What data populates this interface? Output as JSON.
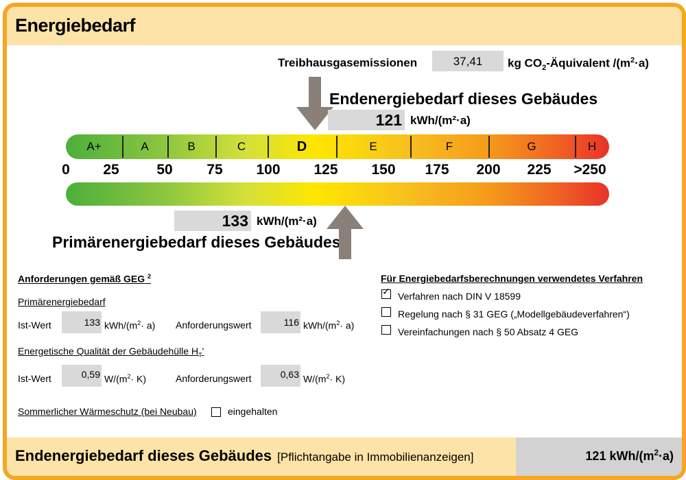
{
  "header": {
    "title": "Energiebedarf"
  },
  "emissions": {
    "label": "Treibhausgasemissionen",
    "value": "37,41",
    "unit_pre": "kg CO",
    "unit_sub": "2",
    "unit_mid": "-Äquivalent /(m",
    "unit_sup": "2",
    "unit_post": "·a)"
  },
  "end_energy": {
    "title": "Endenergiebedarf dieses Gebäudes",
    "value": "121",
    "unit": "kWh/(m²·a)"
  },
  "classes": [
    "A+",
    "A",
    "B",
    "C",
    "D",
    "E",
    "F",
    "G",
    "H"
  ],
  "highlighted_class": "D",
  "ticks": [
    "0",
    "25",
    "50",
    "75",
    "100",
    "125",
    "150",
    "175",
    "200",
    "225",
    ">250"
  ],
  "primary_energy": {
    "title": "Primärenergiebedarf dieses Gebäudes",
    "value": "133",
    "unit": "kWh/(m²·a)"
  },
  "requirements": {
    "title": "Anforderungen gemäß GEG",
    "title_sup": "2",
    "primary": {
      "title": "Primärenergiebedarf",
      "ist_label": "Ist-Wert",
      "ist_value": "133",
      "ist_unit_pre": "kWh/(m",
      "ist_unit_sup": "2",
      "ist_unit_post": "· a)",
      "anf_label": "Anforderungswert",
      "anf_value": "116",
      "anf_unit_pre": "kWh/(m",
      "anf_unit_sup": "2",
      "anf_unit_post": "· a)"
    },
    "envelope": {
      "title_pre": "Energetische Qualität der Gebäudehülle H",
      "title_sub": "T",
      "title_post": "'",
      "ist_label": "Ist-Wert",
      "ist_value": "0,59",
      "ist_unit_pre": "W/(m",
      "ist_unit_sup": "2",
      "ist_unit_post": "· K)",
      "anf_label": "Anforderungswert",
      "anf_value": "0,63",
      "anf_unit_pre": "W/(m",
      "anf_unit_sup": "2",
      "anf_unit_post": "· K)"
    },
    "summer": {
      "label": "Sommerlicher Wärmeschutz (bei Neubau)",
      "option": "eingehalten",
      "checked": false
    }
  },
  "methods": {
    "title": "Für Energiebedarfsberechnungen verwendetes Verfahren",
    "options": [
      {
        "label": "Verfahren nach DIN V 18599",
        "checked": true
      },
      {
        "label": "Regelung nach § 31 GEG („Modellgebäudeverfahren“)",
        "checked": false
      },
      {
        "label": "Vereinfachungen nach § 50 Absatz 4 GEG",
        "checked": false
      }
    ]
  },
  "footer": {
    "label": "Endenergiebedarf dieses Gebäudes",
    "note": "[Pflichtangabe in Immobilienanzeigen]",
    "value": "121",
    "unit_pre": "kWh/(m",
    "unit_sup": "2",
    "unit_post": "·a)"
  }
}
